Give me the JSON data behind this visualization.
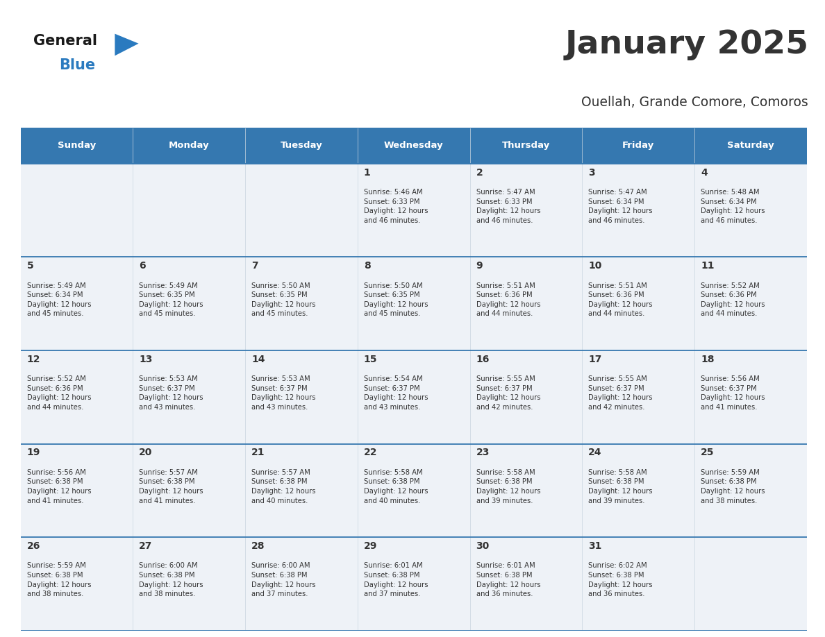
{
  "title": "January 2025",
  "subtitle": "Ouellah, Grande Comore, Comoros",
  "header_color": "#3578b0",
  "header_text_color": "#ffffff",
  "cell_bg_odd": "#eef2f7",
  "cell_bg_even": "#ffffff",
  "border_color": "#3578b0",
  "text_color": "#333333",
  "days_of_week": [
    "Sunday",
    "Monday",
    "Tuesday",
    "Wednesday",
    "Thursday",
    "Friday",
    "Saturday"
  ],
  "calendar_data": [
    [
      {
        "day": "",
        "info": ""
      },
      {
        "day": "",
        "info": ""
      },
      {
        "day": "",
        "info": ""
      },
      {
        "day": "1",
        "info": "Sunrise: 5:46 AM\nSunset: 6:33 PM\nDaylight: 12 hours\nand 46 minutes."
      },
      {
        "day": "2",
        "info": "Sunrise: 5:47 AM\nSunset: 6:33 PM\nDaylight: 12 hours\nand 46 minutes."
      },
      {
        "day": "3",
        "info": "Sunrise: 5:47 AM\nSunset: 6:34 PM\nDaylight: 12 hours\nand 46 minutes."
      },
      {
        "day": "4",
        "info": "Sunrise: 5:48 AM\nSunset: 6:34 PM\nDaylight: 12 hours\nand 46 minutes."
      }
    ],
    [
      {
        "day": "5",
        "info": "Sunrise: 5:49 AM\nSunset: 6:34 PM\nDaylight: 12 hours\nand 45 minutes."
      },
      {
        "day": "6",
        "info": "Sunrise: 5:49 AM\nSunset: 6:35 PM\nDaylight: 12 hours\nand 45 minutes."
      },
      {
        "day": "7",
        "info": "Sunrise: 5:50 AM\nSunset: 6:35 PM\nDaylight: 12 hours\nand 45 minutes."
      },
      {
        "day": "8",
        "info": "Sunrise: 5:50 AM\nSunset: 6:35 PM\nDaylight: 12 hours\nand 45 minutes."
      },
      {
        "day": "9",
        "info": "Sunrise: 5:51 AM\nSunset: 6:36 PM\nDaylight: 12 hours\nand 44 minutes."
      },
      {
        "day": "10",
        "info": "Sunrise: 5:51 AM\nSunset: 6:36 PM\nDaylight: 12 hours\nand 44 minutes."
      },
      {
        "day": "11",
        "info": "Sunrise: 5:52 AM\nSunset: 6:36 PM\nDaylight: 12 hours\nand 44 minutes."
      }
    ],
    [
      {
        "day": "12",
        "info": "Sunrise: 5:52 AM\nSunset: 6:36 PM\nDaylight: 12 hours\nand 44 minutes."
      },
      {
        "day": "13",
        "info": "Sunrise: 5:53 AM\nSunset: 6:37 PM\nDaylight: 12 hours\nand 43 minutes."
      },
      {
        "day": "14",
        "info": "Sunrise: 5:53 AM\nSunset: 6:37 PM\nDaylight: 12 hours\nand 43 minutes."
      },
      {
        "day": "15",
        "info": "Sunrise: 5:54 AM\nSunset: 6:37 PM\nDaylight: 12 hours\nand 43 minutes."
      },
      {
        "day": "16",
        "info": "Sunrise: 5:55 AM\nSunset: 6:37 PM\nDaylight: 12 hours\nand 42 minutes."
      },
      {
        "day": "17",
        "info": "Sunrise: 5:55 AM\nSunset: 6:37 PM\nDaylight: 12 hours\nand 42 minutes."
      },
      {
        "day": "18",
        "info": "Sunrise: 5:56 AM\nSunset: 6:37 PM\nDaylight: 12 hours\nand 41 minutes."
      }
    ],
    [
      {
        "day": "19",
        "info": "Sunrise: 5:56 AM\nSunset: 6:38 PM\nDaylight: 12 hours\nand 41 minutes."
      },
      {
        "day": "20",
        "info": "Sunrise: 5:57 AM\nSunset: 6:38 PM\nDaylight: 12 hours\nand 41 minutes."
      },
      {
        "day": "21",
        "info": "Sunrise: 5:57 AM\nSunset: 6:38 PM\nDaylight: 12 hours\nand 40 minutes."
      },
      {
        "day": "22",
        "info": "Sunrise: 5:58 AM\nSunset: 6:38 PM\nDaylight: 12 hours\nand 40 minutes."
      },
      {
        "day": "23",
        "info": "Sunrise: 5:58 AM\nSunset: 6:38 PM\nDaylight: 12 hours\nand 39 minutes."
      },
      {
        "day": "24",
        "info": "Sunrise: 5:58 AM\nSunset: 6:38 PM\nDaylight: 12 hours\nand 39 minutes."
      },
      {
        "day": "25",
        "info": "Sunrise: 5:59 AM\nSunset: 6:38 PM\nDaylight: 12 hours\nand 38 minutes."
      }
    ],
    [
      {
        "day": "26",
        "info": "Sunrise: 5:59 AM\nSunset: 6:38 PM\nDaylight: 12 hours\nand 38 minutes."
      },
      {
        "day": "27",
        "info": "Sunrise: 6:00 AM\nSunset: 6:38 PM\nDaylight: 12 hours\nand 38 minutes."
      },
      {
        "day": "28",
        "info": "Sunrise: 6:00 AM\nSunset: 6:38 PM\nDaylight: 12 hours\nand 37 minutes."
      },
      {
        "day": "29",
        "info": "Sunrise: 6:01 AM\nSunset: 6:38 PM\nDaylight: 12 hours\nand 37 minutes."
      },
      {
        "day": "30",
        "info": "Sunrise: 6:01 AM\nSunset: 6:38 PM\nDaylight: 12 hours\nand 36 minutes."
      },
      {
        "day": "31",
        "info": "Sunrise: 6:02 AM\nSunset: 6:38 PM\nDaylight: 12 hours\nand 36 minutes."
      },
      {
        "day": "",
        "info": ""
      }
    ]
  ],
  "logo_color_general": "#1a1a1a",
  "logo_color_blue": "#2a7abf",
  "logo_triangle_color": "#2a7abf"
}
